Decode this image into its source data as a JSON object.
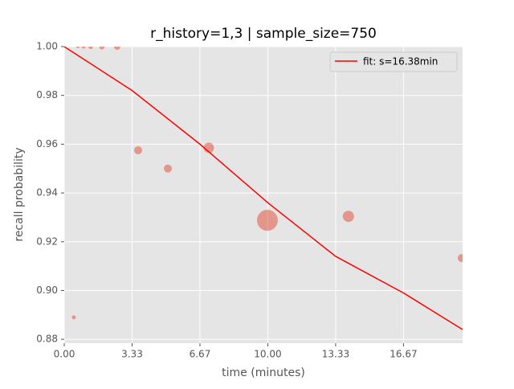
{
  "chart_data": {
    "type": "scatter",
    "title": "r_history=1,3 | sample_size=750",
    "xlabel": "time (minutes)",
    "ylabel": "recall probability",
    "xlim": [
      0,
      19.57
    ],
    "ylim": [
      0.8784,
      1.0
    ],
    "xticks": [
      {
        "value": 0,
        "label": "0.00"
      },
      {
        "value": 3.333,
        "label": "3.33"
      },
      {
        "value": 6.667,
        "label": "6.67"
      },
      {
        "value": 10,
        "label": "10.00"
      },
      {
        "value": 13.333,
        "label": "13.33"
      },
      {
        "value": 16.667,
        "label": "16.67"
      }
    ],
    "yticks": [
      {
        "value": 0.88,
        "label": "0.88"
      },
      {
        "value": 0.9,
        "label": "0.90"
      },
      {
        "value": 0.92,
        "label": "0.92"
      },
      {
        "value": 0.94,
        "label": "0.94"
      },
      {
        "value": 0.96,
        "label": "0.96"
      },
      {
        "value": 0.98,
        "label": "0.98"
      },
      {
        "value": 1.0,
        "label": "1.00"
      }
    ],
    "grid": true,
    "legend": "upper right",
    "points": {
      "color": "#e24a33",
      "x": [
        0.47,
        0.67,
        0.95,
        1.3,
        1.85,
        2.6,
        3.63,
        5.09,
        7.1,
        9.98,
        13.96,
        19.53
      ],
      "values": [
        0.889,
        1.0,
        1.0,
        1.0,
        1.0,
        1.0,
        0.9575,
        0.95,
        0.9585,
        0.9288,
        0.9304,
        0.9133
      ],
      "sizes": [
        2.5,
        2,
        2.5,
        3,
        3.5,
        4,
        5,
        5,
        6.5,
        13,
        7,
        5
      ]
    },
    "fit": {
      "name": "fit: s=16.38min",
      "color": "#ff0000",
      "x": [
        0,
        3.333,
        6.667,
        10,
        13.333,
        16.667,
        19.57
      ],
      "values": [
        1.0,
        0.982,
        0.96,
        0.936,
        0.914,
        0.899,
        0.884
      ]
    }
  }
}
